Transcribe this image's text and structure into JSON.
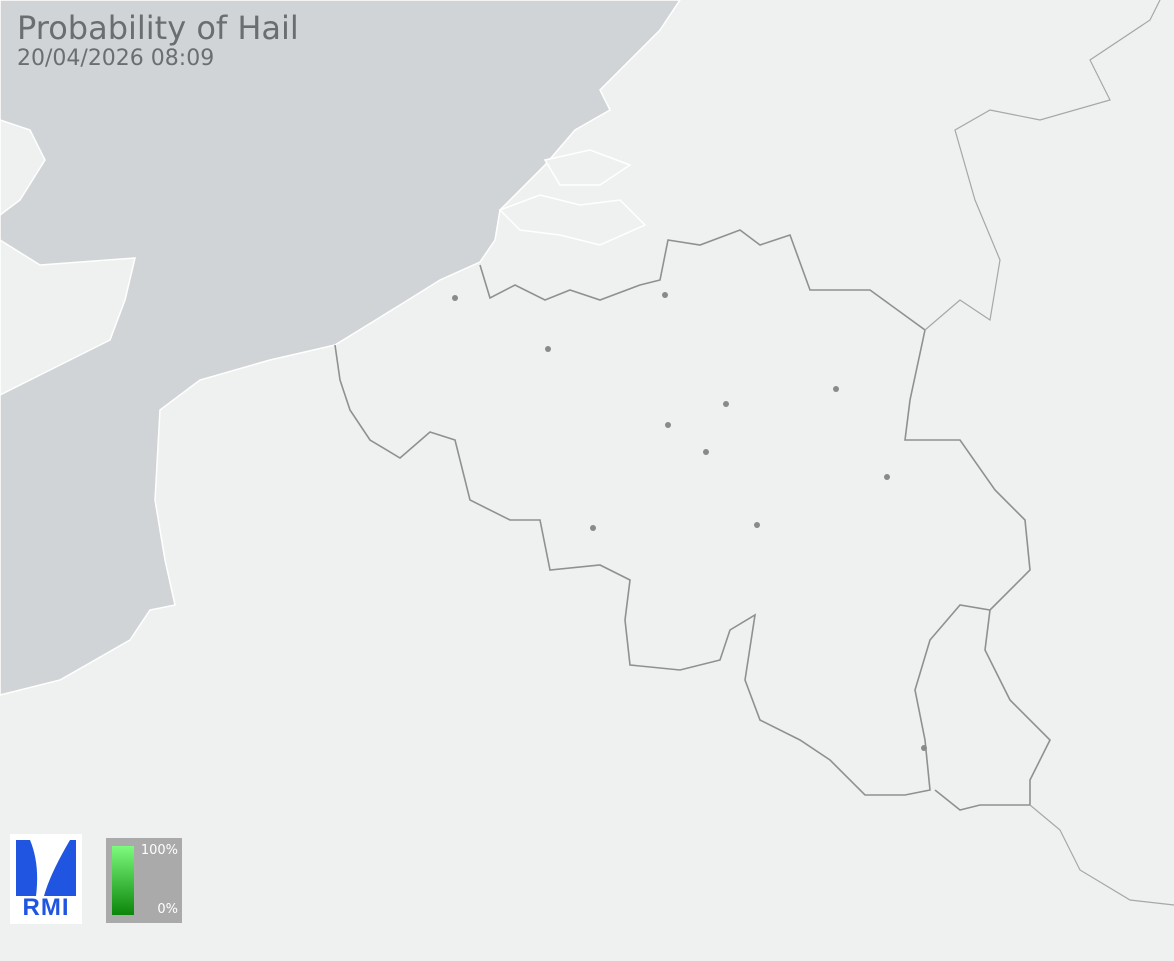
{
  "header": {
    "title": "Probability of Hail",
    "timestamp": "20/04/2026 08:09"
  },
  "logo": {
    "text": "RMI",
    "color": "#1f55e0"
  },
  "legend": {
    "max_label": "100%",
    "min_label": "0%",
    "color_max": "#7dfb7d",
    "color_min": "#0b860b"
  },
  "colors": {
    "sea": "#d1d4d6",
    "land": "#eff0f0",
    "border": "#8e9092",
    "city": "#8a8a8a"
  },
  "map": {
    "cities_count_visible": 11
  }
}
